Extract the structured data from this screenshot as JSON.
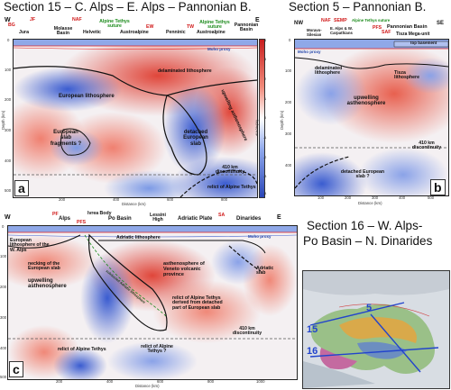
{
  "titles": {
    "s15": "Section 15 – C. Alps – E. Alps – Pannonian B.",
    "s5": "Section 5 – Pannonian B.",
    "s16_l1": "Section 16 – W. Alps-",
    "s16_l2": "Po Basin – N. Dinarides"
  },
  "panel_a": {
    "letter": "a",
    "w": "W",
    "e": "E",
    "faults": [
      "BG",
      "JF",
      "NAF",
      "EW",
      "TW"
    ],
    "units": [
      "Jura",
      "Molasse Basin",
      "Helvetic",
      "Alpine Tethys suture",
      "Austroalpine",
      "Penninic",
      "Austroalpine",
      "Alpine Tethys suture",
      "Pannonian Basin"
    ],
    "labels": {
      "moho": "Moho proxy",
      "eu_lith": "European lithosphere",
      "delam": "delaminated lithosphere",
      "upwell": "upwelling asthenosphere",
      "detached": "detached European slab",
      "fragments": "European slab fragments ?",
      "disc": "410 km discontinuity",
      "relict": "relict of Alpine Tethys",
      "xaxis": "Distance (km)",
      "yaxis": "Depth (km)",
      "cbar": "dVs/Vs(%)"
    },
    "yticks": [
      "0",
      "100",
      "200",
      "300",
      "400",
      "500"
    ],
    "xticks": [
      "200",
      "400",
      "600",
      "800"
    ],
    "cbar_ticks": [
      "4",
      "3",
      "2",
      "1",
      "0",
      "-1",
      "-2",
      "-3",
      "-4"
    ]
  },
  "panel_b": {
    "letter": "b",
    "nw": "NW",
    "se": "SE",
    "faults": [
      "NAF",
      "SEMP",
      "PFS",
      "SAF"
    ],
    "units": [
      "Moravo-Silesian",
      "E. Alps & W. Carpathians",
      "Alpine Tethys suture",
      "Pannonian Basin",
      "Tisza Mega-unit"
    ],
    "labels": {
      "moho": "Moho proxy",
      "top_basement": "top basement",
      "delam": "delaminated lithosphere",
      "tisza": "Tisza lithosphere",
      "upwell": "upwelling asthenosphere",
      "disc": "410 km discontinuity",
      "detached": "detached European slab ?",
      "xaxis": "Distance (km)",
      "yaxis": "Depth (km)"
    },
    "yticks": [
      "0",
      "100",
      "200",
      "300",
      "400"
    ],
    "xticks": [
      "100",
      "200",
      "300",
      "400",
      "500"
    ]
  },
  "panel_c": {
    "letter": "c",
    "w": "W",
    "e": "E",
    "faults": [
      "PF",
      "PFS",
      "SA"
    ],
    "units": [
      "Alps",
      "Ivrea Body",
      "Po Basin",
      "Lessini High",
      "Adriatic Plate",
      "Dinarides"
    ],
    "labels": {
      "adr_lith": "Adriatic lithosphere",
      "moho": "Moho proxy",
      "eu_lith": "European lithosphere of the W. Alps",
      "necking": "necking of the European slab",
      "upwell": "upwelling asthenosphere",
      "veneto": "asthenosphere of Veneto volcanic province",
      "adr_slab": "Adriatic slab",
      "relict_det": "relict of Alpine Tethys derived from detached part of European slab",
      "disc": "410 km discontinuity",
      "relict_w": "relict of Alpine Tethys",
      "relict_q": "relict of Alpine Tethys ?",
      "diag": "subducted Adriatic lithosphere",
      "xaxis": "Distance (km)"
    },
    "yticks": [
      "0",
      "100",
      "200",
      "300",
      "400",
      "500"
    ],
    "xticks": [
      "200",
      "400",
      "600",
      "800",
      "1000"
    ]
  },
  "map": {
    "lines": [
      "15",
      "5",
      "16"
    ]
  },
  "colors": {
    "fast": "#3b5fd0",
    "slow": "#d83a2e",
    "neutral": "#ffffff",
    "fault": "#d01818",
    "suture": "#1a8a1a"
  }
}
